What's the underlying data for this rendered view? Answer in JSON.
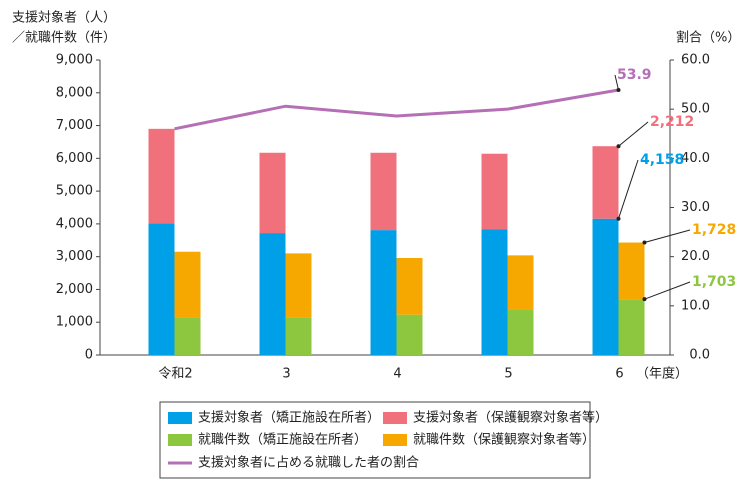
{
  "chart_data": {
    "type": "bar",
    "y_title_lines": [
      "支援対象者（人）",
      "／就職件数（件）"
    ],
    "y2_title": "割合（%）",
    "x_unit": "（年度）",
    "categories": [
      "令和2",
      "3",
      "4",
      "5",
      "6"
    ],
    "series": [
      {
        "name": "支援対象者（矯正施設在所者）",
        "color": "#00a0e9",
        "stack": "a",
        "values": [
          4020,
          3720,
          3810,
          3840,
          4158
        ],
        "value_labels": [
          null,
          null,
          null,
          null,
          "4,158"
        ]
      },
      {
        "name": "支援対象者（保護観察対象者等）",
        "color": "#f0717b",
        "stack": "a",
        "values": [
          2880,
          2450,
          2360,
          2300,
          2212
        ],
        "value_labels": [
          null,
          null,
          null,
          null,
          "2,212"
        ]
      },
      {
        "name": "就職件数（矯正施設在所者）",
        "color": "#8dc63f",
        "stack": "b",
        "values": [
          1130,
          1150,
          1230,
          1400,
          1703
        ],
        "value_labels": [
          null,
          null,
          null,
          null,
          "1,703"
        ]
      },
      {
        "name": "就職件数（保護観察対象者等）",
        "color": "#f7a800",
        "stack": "b",
        "values": [
          2020,
          1950,
          1730,
          1640,
          1728
        ],
        "value_labels": [
          null,
          null,
          null,
          null,
          "1,728"
        ]
      },
      {
        "name": "支援対象者に占める就職した者の割合",
        "color": "#b56fb5",
        "type": "line",
        "axis": "y2",
        "values": [
          46.0,
          50.6,
          48.6,
          50.0,
          53.9
        ],
        "value_labels": [
          null,
          null,
          null,
          null,
          "53.9"
        ]
      }
    ],
    "ylim": [
      0,
      9000
    ],
    "yticks": [
      0,
      {
        "value": 1000,
        "label": "1,000"
      },
      {
        "value": 2000,
        "label": "2,000"
      },
      {
        "value": 3000,
        "label": "3,000"
      },
      {
        "value": 4000,
        "label": "4,000"
      },
      {
        "value": 5000,
        "label": "5,000"
      },
      {
        "value": 6000,
        "label": "6,000"
      },
      {
        "value": 7000,
        "label": "7,000"
      },
      {
        "value": 8000,
        "label": "8,000"
      },
      {
        "value": 9000,
        "label": "9,000"
      }
    ],
    "y2lim": [
      0,
      60
    ],
    "y2ticks": [
      {
        "value": 0,
        "label": "0.0"
      },
      {
        "value": 10,
        "label": "10.0"
      },
      {
        "value": 20,
        "label": "20.0"
      },
      {
        "value": 30,
        "label": "30.0"
      },
      {
        "value": 40,
        "label": "40.0"
      },
      {
        "value": 50,
        "label": "50.0"
      },
      {
        "value": 60,
        "label": "60.0"
      }
    ],
    "grid": false
  }
}
